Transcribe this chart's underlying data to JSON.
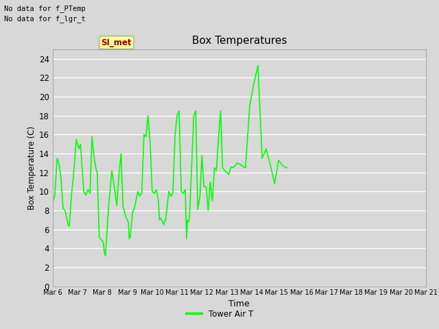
{
  "title": "Box Temperatures",
  "xlabel": "Time",
  "ylabel": "Box Temperature (C)",
  "line_color": "#00ff00",
  "line_width": 1.2,
  "bg_color": "#d8d8d8",
  "plot_bg_color": "#d8d8d8",
  "ylim": [
    0,
    25
  ],
  "yticks": [
    0,
    2,
    4,
    6,
    8,
    10,
    12,
    14,
    16,
    18,
    20,
    22,
    24
  ],
  "no_data_text1": "No data for f_PTemp",
  "no_data_text2": "No data for f_lgr_t",
  "annotation_text": "SI_met",
  "annotation_color": "#990000",
  "annotation_bg": "#ffff99",
  "legend_label": "Tower Air T",
  "x_labels": [
    "Mar 6",
    "Mar 7",
    "Mar 8",
    "Mar 9",
    "Mar 10",
    "Mar 11",
    "Mar 12",
    "Mar 13",
    "Mar 14",
    "Mar 15",
    "Mar 16",
    "Mar 17",
    "Mar 18",
    "Mar 19",
    "Mar 20",
    "Mar 21"
  ],
  "x_tick_pos": [
    0,
    1,
    2,
    3,
    4,
    5,
    6,
    7,
    8,
    9,
    10,
    11,
    12,
    13,
    14,
    15
  ],
  "xlim": [
    0,
    15
  ],
  "y_data": [
    8.8,
    9.5,
    13.5,
    13.0,
    11.5,
    8.2,
    8.0,
    7.0,
    6.5,
    6.3,
    9.5,
    11.5,
    15.5,
    14.5,
    15.0,
    13.0,
    10.0,
    9.6,
    10.2,
    9.8,
    15.8,
    13.5,
    12.3,
    12.0,
    5.3,
    5.0,
    4.9,
    4.8,
    4.5,
    3.5,
    3.2,
    8.5,
    12.2,
    10.0,
    8.5,
    12.0,
    14.0,
    8.3,
    8.0,
    7.5,
    7.2,
    7.0,
    6.8,
    5.0,
    5.2,
    7.8,
    8.3,
    10.0,
    9.5,
    9.8,
    16.0,
    15.8,
    18.0,
    15.0,
    10.0,
    9.8,
    10.2,
    9.0,
    7.0,
    7.2,
    7.0,
    6.8,
    6.5,
    6.8,
    7.0,
    10.0,
    9.5,
    9.8,
    16.0,
    18.0,
    18.5,
    10.0,
    9.8,
    10.2,
    5.0,
    7.0,
    6.8,
    7.2,
    18.0,
    18.5,
    8.1,
    9.5,
    13.8,
    10.5,
    10.5,
    8.0,
    11.0,
    9.0,
    12.5,
    12.2,
    15.8,
    18.5,
    12.5,
    12.2,
    12.0,
    11.8,
    12.6,
    12.5,
    13.0,
    12.8,
    12.6,
    12.5,
    19.0,
    21.3,
    23.3,
    13.5,
    14.5,
    12.8,
    10.8,
    13.3,
    12.7,
    12.5
  ],
  "x_data": [
    0.0,
    0.08,
    0.18,
    0.25,
    0.33,
    0.42,
    0.5,
    0.58,
    0.62,
    0.67,
    0.75,
    0.83,
    0.95,
    1.05,
    1.12,
    1.17,
    1.25,
    1.33,
    1.42,
    1.5,
    1.58,
    1.67,
    1.75,
    1.79,
    1.87,
    1.92,
    1.96,
    2.0,
    2.04,
    2.08,
    2.12,
    2.25,
    2.38,
    2.5,
    2.58,
    2.67,
    2.75,
    2.83,
    2.88,
    2.92,
    2.96,
    3.0,
    3.04,
    3.08,
    3.12,
    3.21,
    3.29,
    3.42,
    3.5,
    3.58,
    3.67,
    3.75,
    3.83,
    3.92,
    4.0,
    4.08,
    4.17,
    4.25,
    4.29,
    4.33,
    4.38,
    4.42,
    4.46,
    4.5,
    4.54,
    4.67,
    4.75,
    4.83,
    4.92,
    5.0,
    5.08,
    5.17,
    5.25,
    5.33,
    5.38,
    5.42,
    5.46,
    5.5,
    5.67,
    5.75,
    5.83,
    5.92,
    6.0,
    6.08,
    6.17,
    6.25,
    6.33,
    6.42,
    6.5,
    6.58,
    6.67,
    6.75,
    6.83,
    6.92,
    7.0,
    7.08,
    7.17,
    7.25,
    7.42,
    7.58,
    7.67,
    7.75,
    7.92,
    8.08,
    8.25,
    8.42,
    8.58,
    8.75,
    8.92,
    9.08,
    9.25,
    9.42
  ]
}
